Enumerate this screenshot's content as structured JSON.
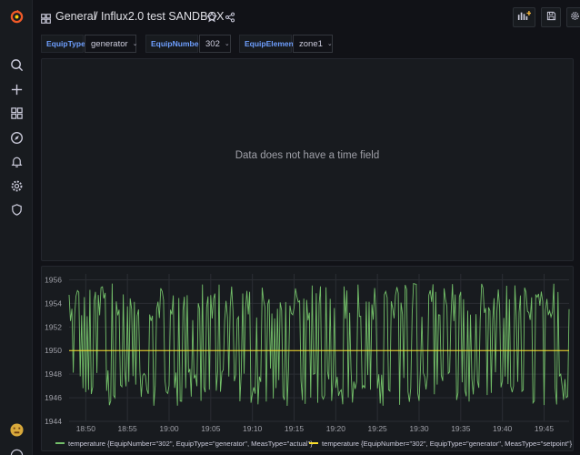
{
  "breadcrumb": {
    "folder": "General",
    "separator": "/",
    "dashboard": "Influx2.0 test SANDBOX"
  },
  "variables": [
    {
      "label": "EquipType",
      "value": "generator"
    },
    {
      "label": "EquipNumber",
      "value": "302"
    },
    {
      "label": "EquipElement",
      "value": "zone1"
    }
  ],
  "panel1": {
    "message": "Data does not have a time field"
  },
  "icons": {
    "sidebar": [
      "grafana-logo-icon",
      "search-icon",
      "plus-icon",
      "dashboards-icon",
      "explore-compass-icon",
      "alerting-bell-icon",
      "configuration-gear-icon",
      "server-admin-shield-icon",
      "user-avatar",
      "help-icon"
    ],
    "topbar": [
      "dashboard-grid-icon",
      "star-icon",
      "share-icon",
      "add-panel-icon",
      "save-icon",
      "settings-gear-icon"
    ]
  },
  "colors": {
    "actual": "#73bf69",
    "setpoint": "#fade2a",
    "accent": "#6e9fff"
  },
  "chart_data": {
    "type": "line",
    "y_ticks": [
      "1956",
      "1954",
      "1952",
      "1950",
      "1948",
      "1946",
      "1944"
    ],
    "ylim": [
      1944,
      1956.5
    ],
    "x_ticks": [
      "18:50",
      "18:55",
      "19:00",
      "19:05",
      "19:10",
      "19:15",
      "19:20",
      "19:25",
      "19:30",
      "19:35",
      "19:40",
      "19:45"
    ],
    "x_range": [
      "18:48",
      "19:48"
    ],
    "grid": true,
    "legend_position": "bottom",
    "series": [
      {
        "name": "temperature {EquipNumber=\"302\", EquipType=\"generator\", MeasType=\"actual\"}",
        "color": "#73bf69",
        "pattern": "random oscillation between ~1945.5 and ~1955.5",
        "min": 1945.3,
        "max": 1955.7
      },
      {
        "name": "temperature {EquipNumber=\"302\", EquipType=\"generator\", MeasType=\"setpoint\"}",
        "color": "#fade2a",
        "constant": 1950
      }
    ]
  }
}
